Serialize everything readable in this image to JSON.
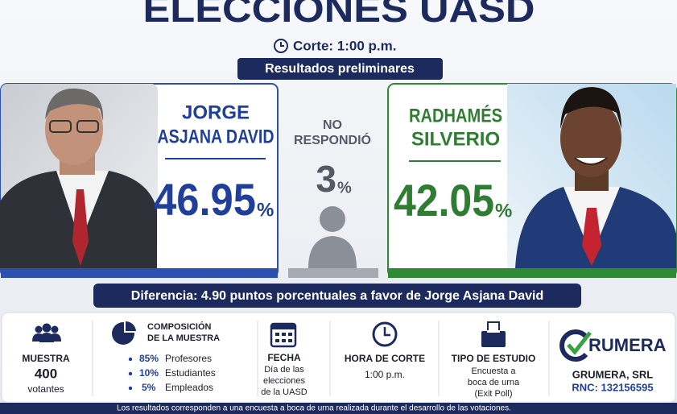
{
  "header": {
    "title": "ELECCIONES UASD",
    "cut_time": "Corte: 1:00 p.m.",
    "subtitle": "Resultados preliminares"
  },
  "candidates": [
    {
      "name_lines": [
        "JORGE",
        "ASJANA DAVID"
      ],
      "percent": "46.95",
      "unit": "%"
    },
    {
      "name_lines": [
        "RADHAMÉS",
        "SILVERIO"
      ],
      "percent": "42.05",
      "unit": "%"
    }
  ],
  "no_response": {
    "label_lines": [
      "NO",
      "RESPONDIÓ"
    ],
    "percent": "3",
    "unit": "%"
  },
  "difference": "Diferencia: 4.90 puntos porcentuales a favor de Jorge Asjana David",
  "info": {
    "sample": {
      "title": "MUESTRA",
      "value": "400",
      "unit": "votantes"
    },
    "composition": {
      "title_lines": [
        "COMPOSICIÓN",
        "DE LA MUESTRA"
      ],
      "items": [
        {
          "share": "85%",
          "label": "Profesores"
        },
        {
          "share": "10%",
          "label": "Estudiantes"
        },
        {
          "share": "5%",
          "label": "Empleados"
        }
      ]
    },
    "date": {
      "title": "FECHA",
      "lines": [
        "Día de las",
        "elecciones",
        "de la UASD"
      ]
    },
    "cut": {
      "title": "HORA DE CORTE",
      "value": "1:00 p.m."
    },
    "study": {
      "title": "TIPO DE ESTUDIO",
      "lines": [
        "Encuesta a",
        "boca de urna",
        "(Exit Poll)"
      ]
    },
    "company": {
      "logo_text": "RUMERA",
      "name": "GRUMERA, SRL",
      "rnc": "RNC: 132156595"
    }
  },
  "footer": "Los resultados corresponden a una encuesta a boca de urna realizada durante el desarrollo de las votaciones."
}
